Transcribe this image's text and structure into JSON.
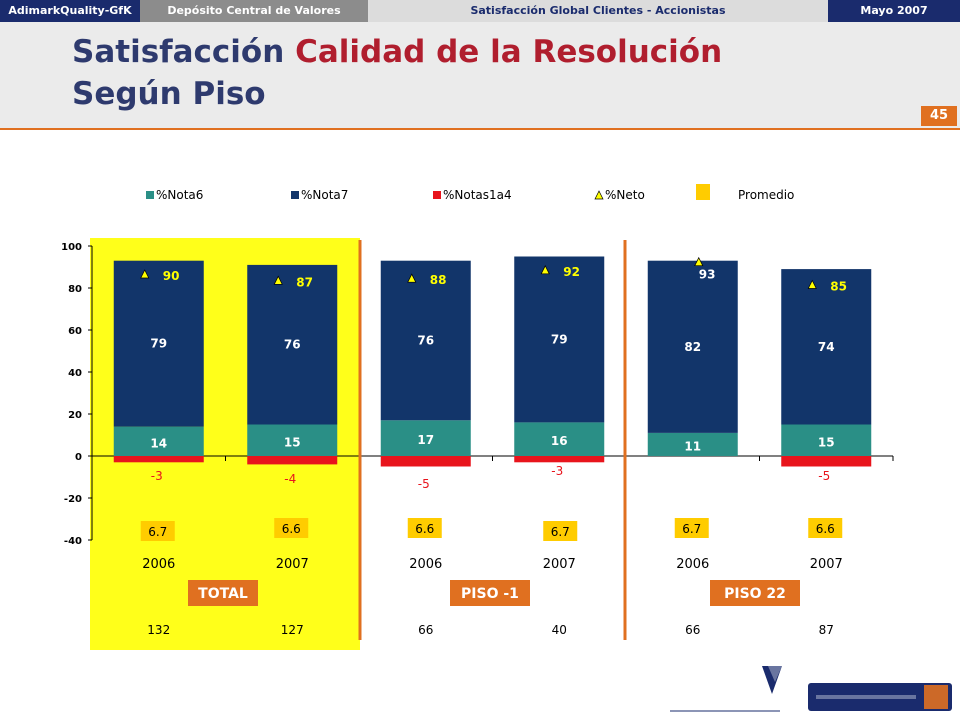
{
  "header": {
    "brand": "AdimarkQuality-GfK",
    "client": "Depósito Central de Valores",
    "study": "Satisfacción Global Clientes - Accionistas",
    "date": "Mayo 2007",
    "title_part1": "Satisfacción ",
    "title_part2": "Calidad de la Resolución",
    "title_line2": "Según Piso",
    "page_number": "45"
  },
  "colors": {
    "nota6": "#2a8f86",
    "nota7": "#12356a",
    "notas1a4": "#e8141c",
    "neto": "#ffff00",
    "promedio": "#ffcc00",
    "highlight": "#ffff1a",
    "accent": "#e07020"
  },
  "chart_data": {
    "type": "bar",
    "ylim": [
      -40,
      100
    ],
    "yticks": [
      100,
      80,
      60,
      40,
      20,
      0,
      -20,
      -40
    ],
    "legend": [
      {
        "key": "nota6",
        "label": "%Nota6"
      },
      {
        "key": "nota7",
        "label": "%Nota7"
      },
      {
        "key": "notas1a4",
        "label": "%Notas1a4"
      },
      {
        "key": "neto",
        "label": "%Neto"
      },
      {
        "key": "promedio",
        "label": "Promedio"
      }
    ],
    "categories": [
      "2006",
      "2007",
      "2006",
      "2007",
      "2006",
      "2007"
    ],
    "groups": [
      {
        "label": "TOTAL",
        "n": [
          "132",
          "127"
        ]
      },
      {
        "label": "PISO -1",
        "n": [
          "66",
          "40"
        ]
      },
      {
        "label": "PISO 22",
        "n": [
          "66",
          "87"
        ]
      }
    ],
    "series": [
      {
        "name": "%Nota6",
        "values": [
          14,
          15,
          17,
          16,
          11,
          15
        ]
      },
      {
        "name": "%Nota7",
        "values": [
          79,
          76,
          76,
          79,
          82,
          74
        ]
      },
      {
        "name": "%Notas1a4",
        "values": [
          -3,
          -4,
          -5,
          -3,
          null,
          -5
        ]
      },
      {
        "name": "%Neto",
        "values": [
          90,
          87,
          88,
          92,
          93,
          85
        ]
      },
      {
        "name": "Promedio",
        "values": [
          6.7,
          6.6,
          6.6,
          6.7,
          6.7,
          6.6
        ]
      }
    ],
    "value_labels": {
      "nota6": [
        "14",
        "15",
        "17",
        "16",
        "11",
        "15"
      ],
      "nota7": [
        "79",
        "76",
        "76",
        "79",
        "82",
        "74"
      ],
      "notas1a4": [
        "-3",
        "-4",
        "-5",
        "-3",
        "",
        "-5"
      ],
      "neto": [
        "90",
        "87",
        "88",
        "92",
        "93",
        "85"
      ],
      "promedio": [
        "6.7",
        "6.6",
        "6.6",
        "6.7",
        "6.7",
        "6.6"
      ]
    }
  }
}
